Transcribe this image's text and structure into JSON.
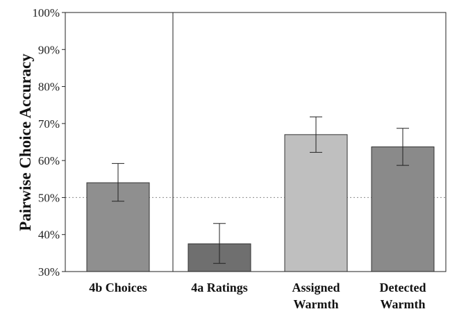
{
  "chart_data": {
    "type": "bar",
    "categories": [
      "4b Choices",
      "4a Ratings",
      "Assigned Warmth",
      "Detected Warmth"
    ],
    "category_lines": [
      [
        "4b Choices"
      ],
      [
        "4a Ratings"
      ],
      [
        "Assigned",
        "Warmth"
      ],
      [
        "Detected",
        "Warmth"
      ]
    ],
    "values": [
      54,
      37.5,
      67,
      63.7
    ],
    "error_low": [
      49,
      32.2,
      62.2,
      58.7
    ],
    "error_high": [
      59.2,
      43,
      71.8,
      68.7
    ],
    "bar_colors": [
      "#8f8f8f",
      "#6f6f6f",
      "#bfbfbf",
      "#8a8a8a"
    ],
    "ylabel": "Pairwise Choice Accuracy",
    "ylim": [
      30,
      100
    ],
    "yticks": [
      30,
      40,
      50,
      60,
      70,
      80,
      90,
      100
    ],
    "ytick_labels": [
      "30%",
      "40%",
      "50%",
      "60%",
      "70%",
      "80%",
      "90%",
      "100%"
    ],
    "reference_line": 50,
    "panel_divider_after": "4b Choices",
    "grid": false
  }
}
